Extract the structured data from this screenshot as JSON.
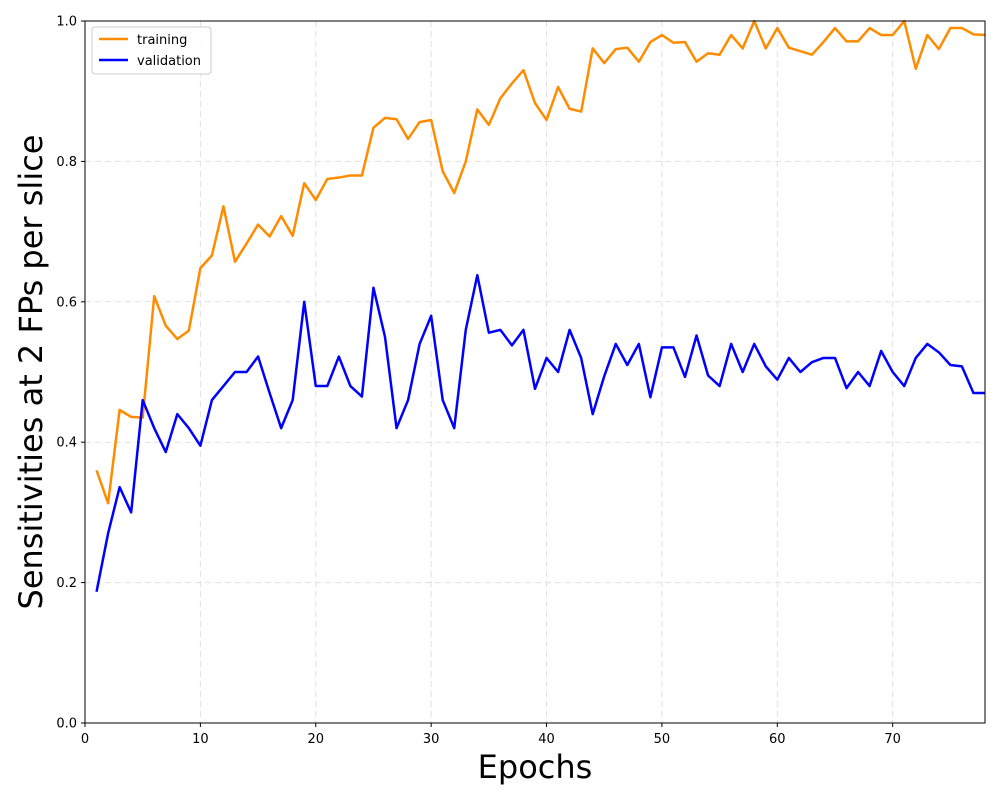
{
  "chart_data": {
    "type": "line",
    "title": "",
    "xlabel": "Epochs",
    "ylabel": "Sensitivities at 2 FPs per slice",
    "xlim": [
      0,
      78
    ],
    "ylim": [
      0.0,
      1.0
    ],
    "x_ticks": [
      0,
      10,
      20,
      30,
      40,
      50,
      60,
      70
    ],
    "x_tick_labels": [
      "0",
      "10",
      "20",
      "30",
      "40",
      "50",
      "60",
      "70"
    ],
    "y_ticks": [
      0.0,
      0.2,
      0.4,
      0.6,
      0.8,
      1.0
    ],
    "y_tick_labels": [
      "0.0",
      "0.2",
      "0.4",
      "0.6",
      "0.8",
      "1.0"
    ],
    "grid": true,
    "legend_position": "top-left",
    "x": [
      1,
      2,
      3,
      4,
      5,
      6,
      7,
      8,
      9,
      10,
      11,
      12,
      13,
      14,
      15,
      16,
      17,
      18,
      19,
      20,
      21,
      22,
      23,
      24,
      25,
      26,
      27,
      28,
      29,
      30,
      31,
      32,
      33,
      34,
      35,
      36,
      37,
      38,
      39,
      40,
      41,
      42,
      43,
      44,
      45,
      46,
      47,
      48,
      49,
      50,
      51,
      52,
      53,
      54,
      55,
      56,
      57,
      58,
      59,
      60,
      61,
      62,
      63,
      64,
      65,
      66,
      67,
      68,
      69,
      70,
      71,
      72,
      73,
      74,
      75,
      76,
      77,
      78
    ],
    "series": [
      {
        "name": "training",
        "color": "#ff8c00",
        "values": [
          0.36,
          0.313,
          0.446,
          0.436,
          0.435,
          0.608,
          0.566,
          0.547,
          0.559,
          0.648,
          0.666,
          0.736,
          0.657,
          0.683,
          0.71,
          0.693,
          0.722,
          0.694,
          0.769,
          0.745,
          0.775,
          0.777,
          0.78,
          0.78,
          0.848,
          0.862,
          0.86,
          0.832,
          0.856,
          0.859,
          0.786,
          0.755,
          0.8,
          0.874,
          0.852,
          0.89,
          0.911,
          0.93,
          0.883,
          0.859,
          0.906,
          0.875,
          0.871,
          0.961,
          0.94,
          0.96,
          0.962,
          0.942,
          0.97,
          0.98,
          0.969,
          0.97,
          0.942,
          0.954,
          0.952,
          0.98,
          0.961,
          1.0,
          0.961,
          0.99,
          0.962,
          0.957,
          0.952,
          0.97,
          0.99,
          0.971,
          0.971,
          0.99,
          0.98,
          0.98,
          1.0,
          0.932,
          0.98,
          0.96,
          0.99,
          0.99,
          0.981,
          0.98
        ]
      },
      {
        "name": "validation",
        "color": "#0000ff",
        "values": [
          0.187,
          0.27,
          0.336,
          0.3,
          0.46,
          0.42,
          0.386,
          0.44,
          0.42,
          0.395,
          0.46,
          0.48,
          0.5,
          0.5,
          0.522,
          0.47,
          0.42,
          0.46,
          0.6,
          0.48,
          0.48,
          0.522,
          0.48,
          0.465,
          0.62,
          0.55,
          0.42,
          0.46,
          0.54,
          0.58,
          0.46,
          0.42,
          0.56,
          0.638,
          0.556,
          0.56,
          0.538,
          0.56,
          0.476,
          0.52,
          0.5,
          0.56,
          0.52,
          0.44,
          0.494,
          0.54,
          0.51,
          0.54,
          0.464,
          0.535,
          0.535,
          0.493,
          0.552,
          0.495,
          0.48,
          0.54,
          0.5,
          0.54,
          0.508,
          0.489,
          0.52,
          0.5,
          0.514,
          0.52,
          0.52,
          0.477,
          0.5,
          0.48,
          0.53,
          0.5,
          0.48,
          0.52,
          0.54,
          0.528,
          0.51,
          0.508,
          0.47,
          0.47
        ]
      }
    ]
  }
}
